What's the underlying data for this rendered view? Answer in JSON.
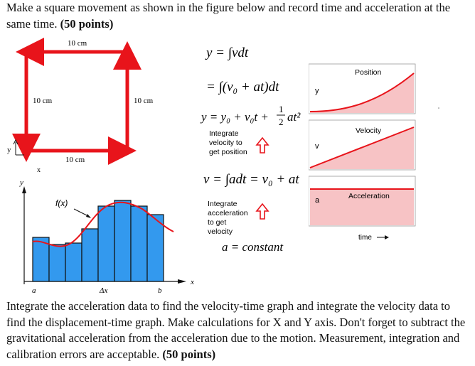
{
  "intro": {
    "text": "Make a square movement as shown in the figure below and record time and acceleration at the same time.",
    "points": "(50 points)"
  },
  "square_figure": {
    "top_label": "10 cm",
    "left_label": "10 cm",
    "right_label": "10 cm",
    "bottom_label": "10 cm",
    "axis_y": "y",
    "axis_x": "x"
  },
  "equations": {
    "eq1": "y = ∫vdt",
    "eq2": "= ∫(v₀ + at)dt",
    "eq3_main": "y = y₀ + v₀t +",
    "eq3_num": "1",
    "eq3_den": "2",
    "eq3_tail": "at²",
    "note1": [
      "Integrate",
      "velocity to",
      "get position"
    ],
    "eq4": "v = ∫adt = v₀ + at",
    "note2": [
      "Integrate",
      "acceleration",
      "to get",
      "velocity"
    ],
    "eq5": "a = constant"
  },
  "integral_figure": {
    "axis_y": "y",
    "axis_x": "x",
    "func_label": "f(x)",
    "a_label": "a",
    "dx_label": "Δx",
    "b_label": "b"
  },
  "graphs": {
    "position_title": "Position",
    "position_axis": "y",
    "velocity_title": "Velocity",
    "velocity_axis": "v",
    "accel_title": "Acceleration",
    "accel_axis": "a",
    "time_label": "time"
  },
  "outro": {
    "text": "Integrate the acceleration data to find the velocity-time graph and integrate the velocity data to find the displacement-time graph. Make calculations for X and Y axis. Don't forget to subtract the gravitational acceleration from the acceleration due to the motion. Measurement, integration and calibration errors are acceptable.",
    "points": "(50 points)"
  },
  "colors": {
    "red": "#e8141b",
    "blue": "#3399ee",
    "pink": "#f7c3c5"
  }
}
